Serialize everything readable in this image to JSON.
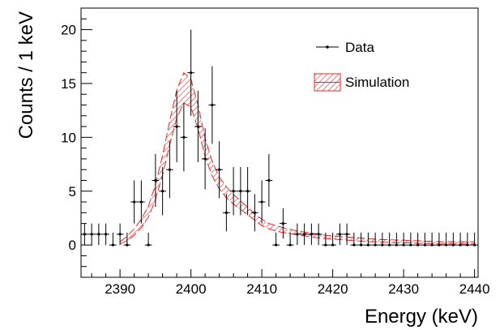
{
  "chart_data": {
    "type": "histogram-with-band",
    "xlabel": "Energy (keV)",
    "ylabel": "Counts / 1 keV",
    "xlim": [
      2384.5,
      2440.5
    ],
    "ylim": [
      -3,
      22
    ],
    "xticks": [
      2390,
      2400,
      2410,
      2420,
      2430,
      2440
    ],
    "yticks": [
      0,
      5,
      10,
      15,
      20
    ],
    "legend": {
      "position": "top-right",
      "entries": [
        {
          "label": "Data",
          "style": "errorbar"
        },
        {
          "label": "Simulation",
          "style": "hatched-band"
        }
      ]
    },
    "colors": {
      "data": "#000000",
      "simulation": "#e8282b"
    },
    "series": [
      {
        "name": "Data",
        "x": [
          2385,
          2386,
          2387,
          2388,
          2389,
          2390,
          2391,
          2392,
          2393,
          2394,
          2395,
          2396,
          2397,
          2398,
          2399,
          2400,
          2401,
          2402,
          2403,
          2404,
          2405,
          2406,
          2407,
          2408,
          2409,
          2410,
          2411,
          2412,
          2413,
          2414,
          2415,
          2416,
          2417,
          2418,
          2419,
          2420,
          2421,
          2422,
          2423,
          2424,
          2425,
          2426,
          2427,
          2428,
          2429,
          2430,
          2431,
          2432,
          2433,
          2434,
          2435,
          2436,
          2437,
          2438,
          2439,
          2440
        ],
        "y": [
          1,
          1,
          1,
          1,
          0,
          1,
          0,
          4,
          4,
          0,
          6,
          5,
          7,
          11,
          10,
          16,
          11,
          8,
          13,
          7,
          3,
          5,
          5,
          5,
          3,
          4,
          6,
          0,
          2,
          0,
          1,
          1,
          1,
          1,
          0,
          0,
          1,
          1,
          0,
          0,
          0,
          0,
          0,
          0,
          0,
          0,
          0,
          0,
          0,
          0,
          0,
          0,
          0,
          0,
          0,
          0
        ]
      },
      {
        "name": "Simulation",
        "x": [
          2390,
          2391,
          2392,
          2393,
          2394,
          2395,
          2396,
          2397,
          2398,
          2399,
          2400,
          2401,
          2402,
          2403,
          2404,
          2405,
          2406,
          2407,
          2408,
          2409,
          2410,
          2411,
          2412,
          2413,
          2414,
          2415,
          2416,
          2417,
          2418,
          2419,
          2420,
          2421,
          2422,
          2423,
          2424,
          2425,
          2426,
          2427,
          2428,
          2429,
          2430,
          2431,
          2432,
          2433,
          2434,
          2435,
          2436,
          2437,
          2438,
          2439,
          2440
        ],
        "lower": [
          0.1,
          0.4,
          0.9,
          1.6,
          2.6,
          4.2,
          6.5,
          9.3,
          11.8,
          13.2,
          12.8,
          10.8,
          8.2,
          6.4,
          5.2,
          4.4,
          3.8,
          3.3,
          2.8,
          2.3,
          1.8,
          1.5,
          1.3,
          1.15,
          1.05,
          0.95,
          0.85,
          0.75,
          0.65,
          0.6,
          0.55,
          0.5,
          0.45,
          0.4,
          0.35,
          0.3,
          0.3,
          0.25,
          0.25,
          0.2,
          0.2,
          0.2,
          0.15,
          0.15,
          0.15,
          0.1,
          0.1,
          0.1,
          0.1,
          0.1,
          0.1
        ],
        "upper": [
          0.3,
          0.8,
          1.5,
          2.4,
          3.6,
          5.6,
          8.3,
          11.5,
          14.4,
          16.0,
          15.4,
          13.0,
          9.9,
          7.8,
          6.3,
          5.4,
          4.7,
          4.1,
          3.5,
          2.9,
          2.4,
          2.0,
          1.8,
          1.6,
          1.45,
          1.3,
          1.2,
          1.1,
          1.0,
          0.9,
          0.85,
          0.8,
          0.75,
          0.7,
          0.65,
          0.6,
          0.55,
          0.5,
          0.5,
          0.45,
          0.45,
          0.4,
          0.4,
          0.35,
          0.35,
          0.3,
          0.3,
          0.3,
          0.3,
          0.3,
          0.3
        ]
      }
    ]
  }
}
